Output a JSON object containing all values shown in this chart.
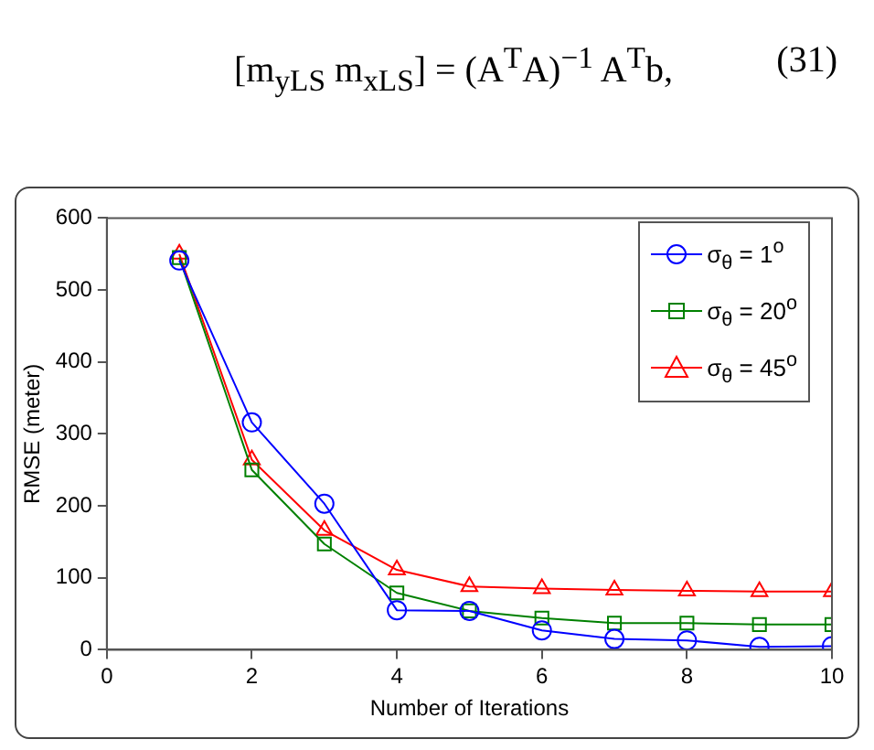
{
  "chart_data": {
    "type": "line",
    "xlabel": "Number of Iterations",
    "ylabel": "RMSE (meter)",
    "annotations": [
      "[m$_{yLS}$ m$_{xLS}$] = (A$^{T}$A)$^{−1}$ A$^{T}$b,",
      "(31)"
    ],
    "x": [
      1,
      2,
      3,
      4,
      5,
      6,
      7,
      8,
      9,
      10
    ],
    "series": [
      {
        "name": "σ$_{θ}$ = 1$^{o}$",
        "color": "#0000ff",
        "marker": "circle",
        "values": [
          541,
          316,
          203,
          55,
          54,
          27,
          15,
          13,
          4,
          5
        ]
      },
      {
        "name": "σ$_{θ}$ = 20$^{o}$",
        "color": "#008000",
        "marker": "square",
        "values": [
          545,
          250,
          147,
          79,
          54,
          44,
          37,
          37,
          35,
          35
        ]
      },
      {
        "name": "σ$_{θ}$ = 45$^{o}$",
        "color": "#ff0000",
        "marker": "triangle",
        "values": [
          550,
          264,
          166,
          111,
          88,
          85,
          83,
          82,
          81,
          81
        ]
      }
    ],
    "xlim": [
      0,
      10
    ],
    "xticks": [
      0,
      2,
      4,
      6,
      8,
      10
    ],
    "ylim": [
      0,
      600
    ],
    "yticks": [
      0,
      100,
      200,
      300,
      400,
      500,
      600
    ],
    "grid": false,
    "legend": "top right",
    "line_style": "solid"
  }
}
